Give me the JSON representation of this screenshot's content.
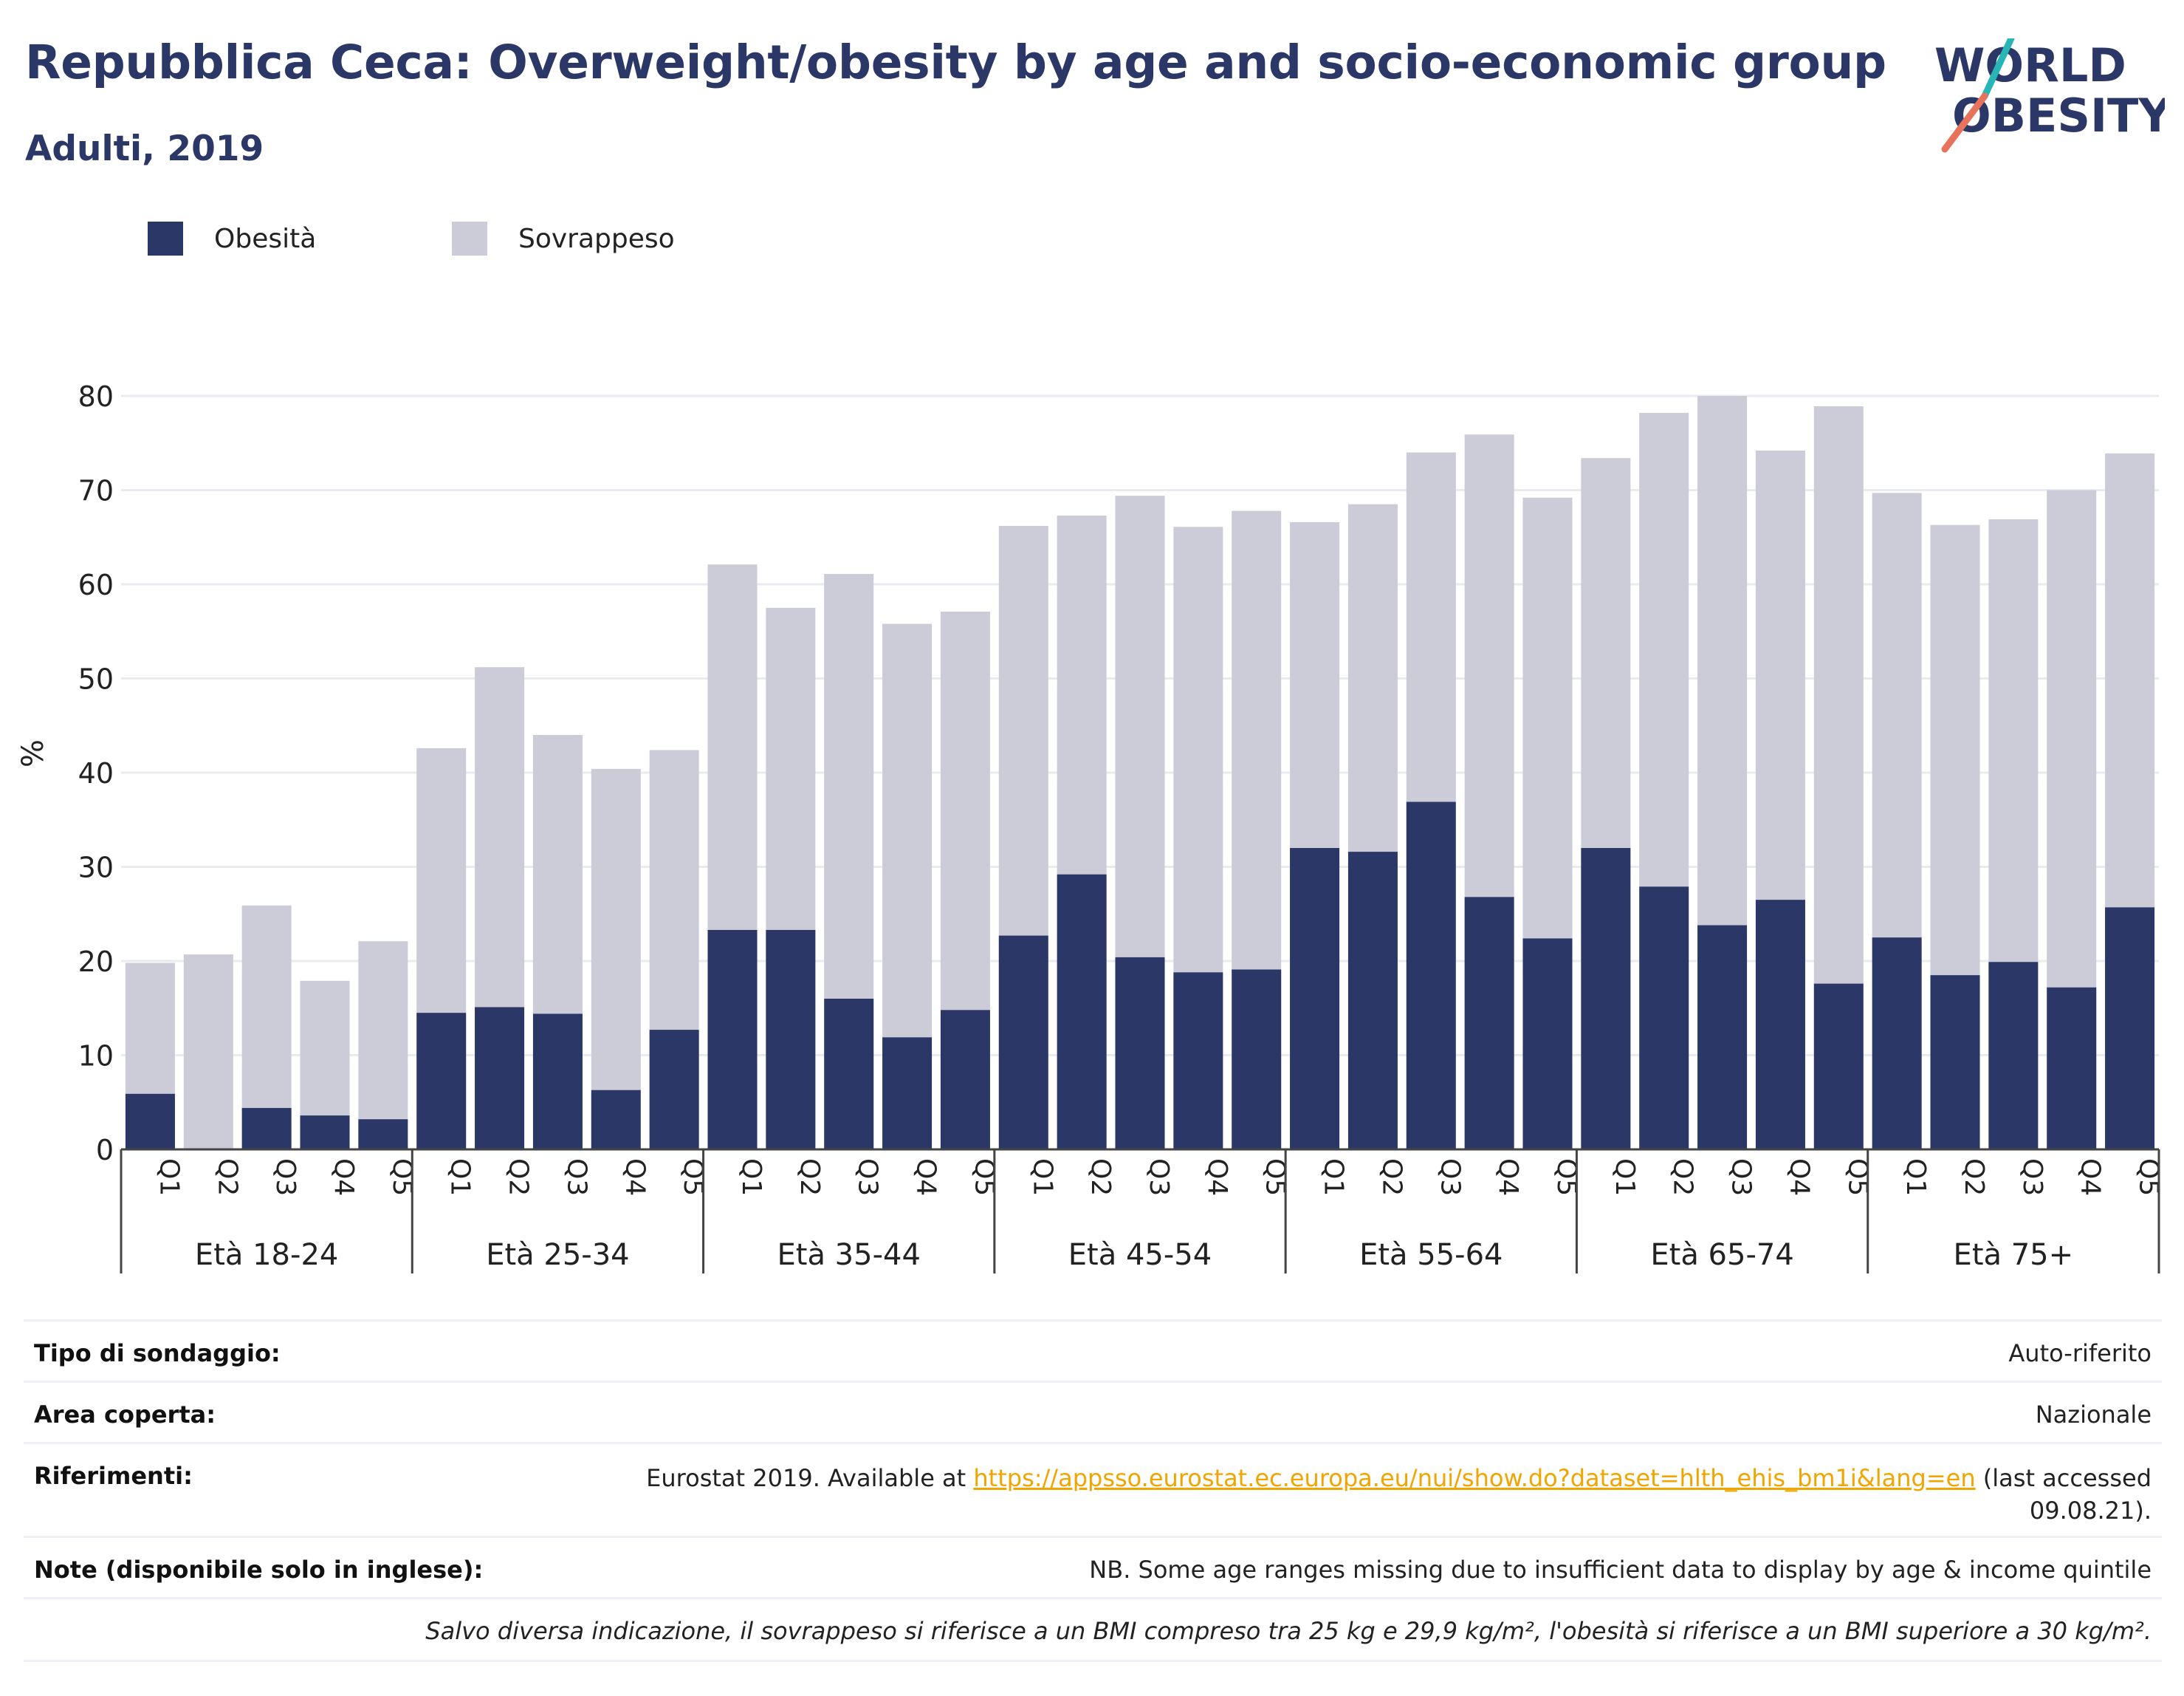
{
  "header": {
    "title": "Repubblica Ceca: Overweight/obesity by age and socio-economic group",
    "subtitle": "Adulti, 2019"
  },
  "logo": {
    "line1": "WORLD",
    "line2": "OBESITY"
  },
  "legend": [
    {
      "label": "Obesità",
      "color": "#2b3766"
    },
    {
      "label": "Sovrappeso",
      "color": "#cbccd8"
    }
  ],
  "chart_data": {
    "type": "bar",
    "stacked": true,
    "ylabel": "%",
    "xlabel": "",
    "ylim": [
      0,
      80
    ],
    "yticks": [
      0,
      10,
      20,
      30,
      40,
      50,
      60,
      70,
      80
    ],
    "grid": true,
    "legend_position": "top-left",
    "groups": [
      "Età 18-24",
      "Età 25-34",
      "Età 35-44",
      "Età 45-54",
      "Età 55-64",
      "Età 65-74",
      "Età 75+"
    ],
    "quintiles": [
      "Q1",
      "Q2",
      "Q3",
      "Q4",
      "Q5"
    ],
    "series": [
      {
        "name": "Obesità",
        "color": "#2b3766",
        "values": [
          [
            5.9,
            0,
            4.4,
            3.6,
            3.2
          ],
          [
            14.5,
            15.1,
            14.4,
            6.3,
            12.7
          ],
          [
            23.3,
            23.3,
            16.0,
            11.9,
            14.8
          ],
          [
            22.7,
            29.2,
            20.4,
            18.8,
            19.1
          ],
          [
            32.0,
            31.6,
            36.9,
            26.8,
            22.4
          ],
          [
            32.0,
            27.9,
            23.8,
            26.5,
            17.6
          ],
          [
            22.5,
            18.5,
            19.9,
            17.2,
            25.7
          ]
        ]
      },
      {
        "name": "Sovrappeso",
        "color": "#cbccd8",
        "values": [
          [
            13.9,
            20.7,
            21.5,
            14.3,
            18.9
          ],
          [
            28.1,
            36.1,
            29.6,
            34.1,
            29.7
          ],
          [
            38.8,
            34.2,
            45.1,
            43.9,
            42.3
          ],
          [
            43.5,
            38.1,
            49.0,
            47.3,
            48.7
          ],
          [
            34.6,
            36.9,
            37.1,
            49.1,
            46.8
          ],
          [
            41.4,
            50.3,
            56.2,
            47.7,
            61.3
          ],
          [
            47.2,
            47.8,
            47.0,
            52.8,
            48.2
          ]
        ]
      }
    ]
  },
  "info": {
    "survey_type": {
      "label": "Tipo di sondaggio:",
      "value": "Auto-riferito"
    },
    "area": {
      "label": "Area coperta:",
      "value": "Nazionale"
    },
    "references": {
      "label": "Riferimenti:",
      "prefix": "Eurostat 2019. Available at ",
      "link": "https://appsso.eurostat.ec.europa.eu/nui/show.do?dataset=hlth_ehis_bm1i&lang=en",
      "suffix": " (last accessed",
      "suffix2": "09.08.21)."
    },
    "notes": {
      "label": "Note (disponibile solo in inglese):",
      "value": "NB. Some age ranges missing due to insufficient data to display by age & income quintile"
    },
    "definition": "Salvo diversa indicazione, il sovrappeso si riferisce a un BMI compreso tra 25 kg e 29,9 kg/m², l'obesità si riferisce a un BMI superiore a 30 kg/m²."
  }
}
